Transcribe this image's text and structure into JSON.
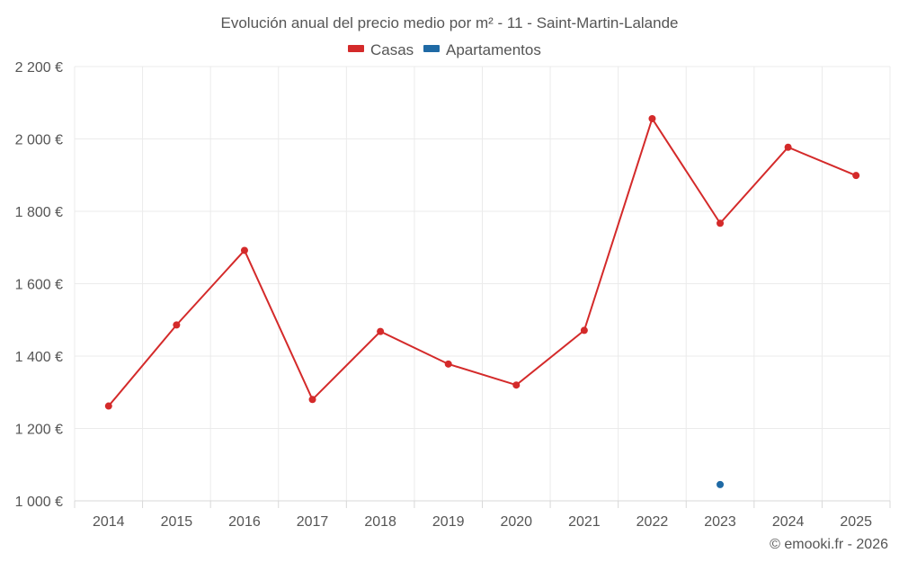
{
  "chart_data": {
    "type": "line",
    "title": "Evolución anual del precio medio por m² - 11 - Saint-Martin-Lalande",
    "categories": [
      "2014",
      "2015",
      "2016",
      "2017",
      "2018",
      "2019",
      "2020",
      "2021",
      "2022",
      "2023",
      "2024",
      "2025"
    ],
    "series": [
      {
        "name": "Casas",
        "color": "#d42a2a",
        "values": [
          1262,
          1486,
          1692,
          1280,
          1468,
          1378,
          1320,
          1471,
          2056,
          1767,
          1977,
          1899
        ]
      },
      {
        "name": "Apartamentos",
        "color": "#1f6aa5",
        "values": [
          null,
          null,
          null,
          null,
          null,
          null,
          null,
          null,
          null,
          1045,
          null,
          null
        ]
      }
    ],
    "ylim": [
      1000,
      2200
    ],
    "yticks": [
      1000,
      1200,
      1400,
      1600,
      1800,
      2000,
      2200
    ],
    "ytick_labels": [
      "1 000 €",
      "1 200 €",
      "1 400 €",
      "1 600 €",
      "1 800 €",
      "2 000 €",
      "2 200 €"
    ],
    "legend_position": "top-center",
    "grid": true
  },
  "credit": "© emooki.fr - 2026"
}
